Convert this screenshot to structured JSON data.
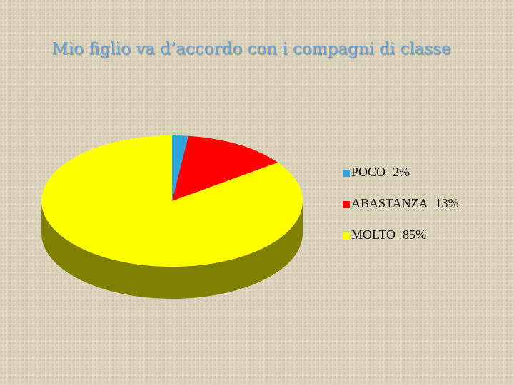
{
  "chart_data": {
    "type": "pie3d",
    "title": "Mio figlio va d’accordo con i compagni di classe",
    "categories": [
      "POCO",
      "ABASTANZA",
      "MOLTO"
    ],
    "values": [
      2,
      13,
      85
    ],
    "value_labels": [
      "2%",
      "13%",
      "85%"
    ],
    "colors": [
      "#2ea3dc",
      "#ff0000",
      "#ffff00"
    ],
    "legend": "right"
  }
}
